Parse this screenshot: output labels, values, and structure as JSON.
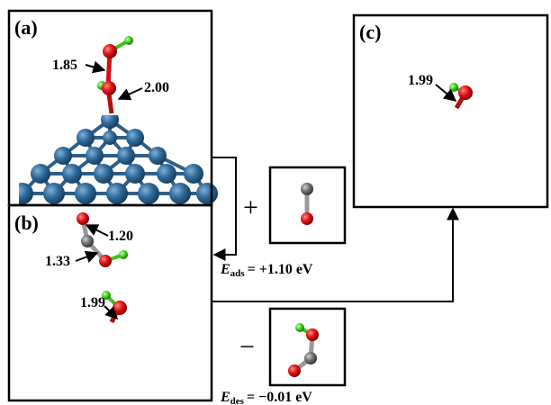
{
  "panels": [
    {
      "label": "(a)",
      "bond_lengths": [
        "1.85",
        "2.00"
      ]
    },
    {
      "label": "(b)",
      "bond_lengths": [
        "1.20",
        "1.33",
        "1.99"
      ]
    },
    {
      "label": "(c)",
      "bond_lengths": [
        "1.99"
      ]
    }
  ],
  "operators": [
    "+",
    "−"
  ],
  "energies": [
    {
      "symbol": "E",
      "subscript": "ads",
      "value": "= +1.10 eV"
    },
    {
      "symbol": "E",
      "subscript": "des",
      "value": "= −0.01 eV"
    }
  ]
}
